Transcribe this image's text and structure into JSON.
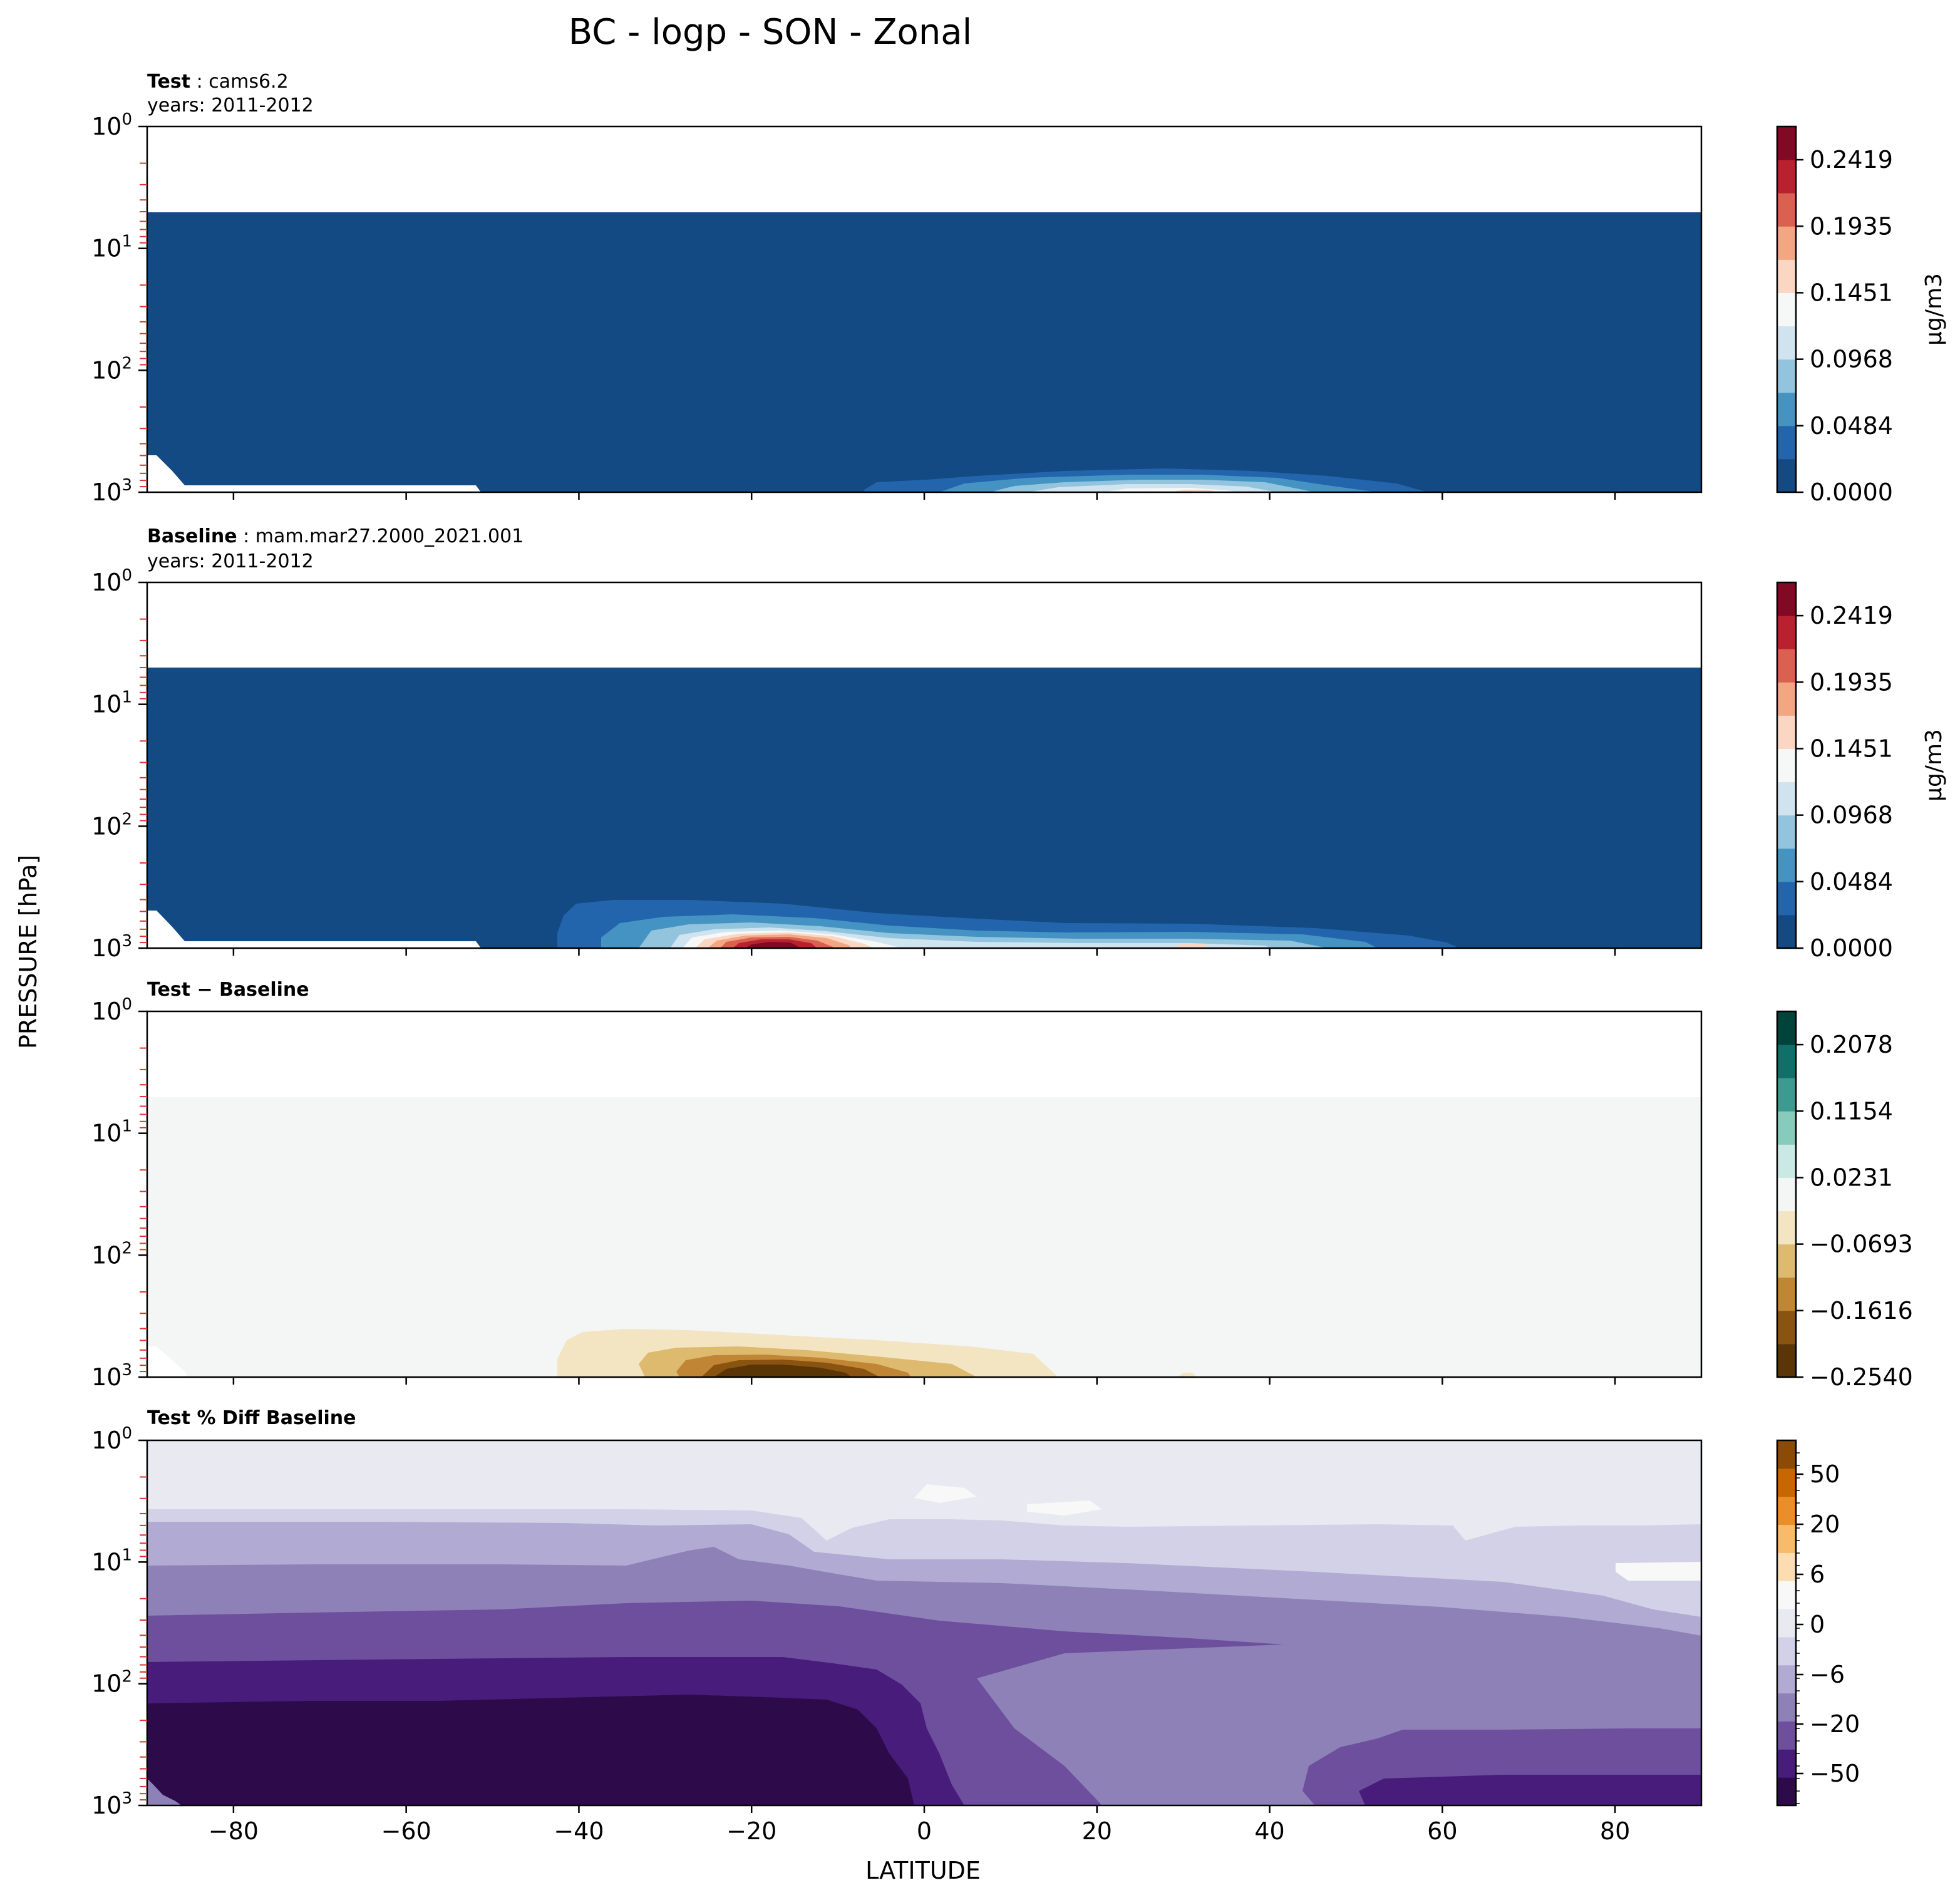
{
  "figure": {
    "title": "BC - logp - SON - Zonal",
    "ylabel": "PRESSURE [hPa]",
    "xlabel": "LATITUDE",
    "x_tick_labels": [
      "−80",
      "−60",
      "−40",
      "−20",
      "0",
      "20",
      "40",
      "60",
      "80"
    ]
  },
  "panels": [
    {
      "title_bold": "Test",
      "title_rest": " : cams6.2",
      "subtitle": "years: 2011-2012"
    },
    {
      "title_bold": "Baseline",
      "title_rest": " : mam.mar27.2000_2021.001",
      "subtitle": "years: 2011-2012"
    },
    {
      "title_bold": "Test − Baseline",
      "title_rest": "",
      "subtitle": ""
    },
    {
      "title_bold": "Test % Diff Baseline",
      "title_rest": "",
      "subtitle": ""
    }
  ],
  "colorbars": [
    {
      "label": "μg/m3",
      "ticks": [
        "0.0000",
        "0.0484",
        "0.0968",
        "0.1451",
        "0.1935",
        "0.2419"
      ]
    },
    {
      "label": "μg/m3",
      "ticks": [
        "0.0000",
        "0.0484",
        "0.0968",
        "0.1451",
        "0.1935",
        "0.2419"
      ]
    },
    {
      "label": "",
      "ticks": [
        "−0.2540",
        "−0.1616",
        "−0.0693",
        "0.0231",
        "0.1154",
        "0.2078"
      ]
    },
    {
      "label": "",
      "ticks": [
        "−50",
        "−20",
        "−6",
        "0",
        "6",
        "20",
        "50"
      ]
    }
  ],
  "chart_data": [
    {
      "type": "heatmap",
      "name": "Test",
      "variable": "BC",
      "units": "μg/m3",
      "x_axis": "LATITUDE",
      "xlim": [
        -90,
        90
      ],
      "xticks": [
        -80,
        -60,
        -40,
        -20,
        0,
        20,
        40,
        60,
        80
      ],
      "y_axis": "PRESSURE [hPa]",
      "y_scale": "log",
      "ylim": [
        1000,
        1
      ],
      "y_tick_labels": [
        "10^0",
        "10^1",
        "10^2",
        "10^3"
      ],
      "colormap": "RdBu_r",
      "levels": [
        0.0,
        0.0242,
        0.0484,
        0.0726,
        0.0968,
        0.121,
        0.1451,
        0.1693,
        0.1935,
        0.2177,
        0.2419,
        0.2661
      ],
      "features": [
        {
          "description": "background",
          "value": 0.0,
          "lat_range": [
            -90,
            90
          ],
          "pressure_range": [
            1000,
            5
          ]
        },
        {
          "description": "near-surface maximum",
          "value": 0.15,
          "lat_range": [
            5,
            50
          ],
          "pressure_range": [
            1000,
            600
          ]
        }
      ]
    },
    {
      "type": "heatmap",
      "name": "Baseline",
      "variable": "BC",
      "units": "μg/m3",
      "x_axis": "LATITUDE",
      "xlim": [
        -90,
        90
      ],
      "xticks": [
        -80,
        -60,
        -40,
        -20,
        0,
        20,
        40,
        60,
        80
      ],
      "y_axis": "PRESSURE [hPa]",
      "y_scale": "log",
      "ylim": [
        1000,
        1
      ],
      "y_tick_labels": [
        "10^0",
        "10^1",
        "10^2",
        "10^3"
      ],
      "colormap": "RdBu_r",
      "levels": [
        0.0,
        0.0242,
        0.0484,
        0.0726,
        0.0968,
        0.121,
        0.1451,
        0.1693,
        0.1935,
        0.2177,
        0.2419,
        0.2661
      ],
      "features": [
        {
          "description": "background",
          "value": 0.0,
          "lat_range": [
            -90,
            90
          ],
          "pressure_range": [
            1000,
            5
          ]
        },
        {
          "description": "southern tropical maximum",
          "value": 0.26,
          "lat_range": [
            -28,
            -8
          ],
          "pressure_range": [
            1000,
            700
          ]
        },
        {
          "description": "northern low-level band",
          "value": 0.12,
          "lat_range": [
            5,
            50
          ],
          "pressure_range": [
            1000,
            700
          ]
        }
      ]
    },
    {
      "type": "heatmap",
      "name": "Test − Baseline",
      "variable": "BC",
      "units": "μg/m3",
      "x_axis": "LATITUDE",
      "xlim": [
        -90,
        90
      ],
      "xticks": [
        -80,
        -60,
        -40,
        -20,
        0,
        20,
        40,
        60,
        80
      ],
      "y_axis": "PRESSURE [hPa]",
      "y_scale": "log",
      "ylim": [
        1000,
        1
      ],
      "y_tick_labels": [
        "10^0",
        "10^1",
        "10^2",
        "10^3"
      ],
      "colormap": "BrBG",
      "levels": [
        -0.254,
        -0.2078,
        -0.1616,
        -0.1154,
        -0.0693,
        -0.0231,
        0.0231,
        0.0693,
        0.1154,
        0.1616,
        0.2078,
        0.254
      ],
      "features": [
        {
          "description": "near-zero background",
          "value": 0.0,
          "lat_range": [
            -90,
            90
          ],
          "pressure_range": [
            1000,
            5
          ]
        },
        {
          "description": "southern tropical minimum",
          "value": -0.24,
          "lat_range": [
            -28,
            -8
          ],
          "pressure_range": [
            1000,
            700
          ]
        }
      ]
    },
    {
      "type": "heatmap",
      "name": "Test % Diff Baseline",
      "variable": "BC",
      "units": "%",
      "x_axis": "LATITUDE",
      "xlim": [
        -90,
        90
      ],
      "xticks": [
        -80,
        -60,
        -40,
        -20,
        0,
        20,
        40,
        60,
        80
      ],
      "y_axis": "PRESSURE [hPa]",
      "y_scale": "log",
      "ylim": [
        1000,
        1
      ],
      "y_tick_labels": [
        "10^0",
        "10^1",
        "10^2",
        "10^3"
      ],
      "colormap": "PuOr_r",
      "colorbar_ticks": [
        -50,
        -20,
        -6,
        0,
        6,
        20,
        50
      ],
      "features": [
        {
          "description": "upper levels near zero",
          "value": -2,
          "lat_range": [
            -90,
            90
          ],
          "pressure_range": [
            3,
            1
          ]
        },
        {
          "description": "mid levels",
          "value": -15,
          "lat_range": [
            -90,
            90
          ],
          "pressure_range": [
            100,
            10
          ]
        },
        {
          "description": "southern lower-troposphere minimum",
          "value": -70,
          "lat_range": [
            -90,
            -5
          ],
          "pressure_range": [
            1000,
            150
          ]
        },
        {
          "description": "northern lower troposphere",
          "value": -30,
          "lat_range": [
            40,
            90
          ],
          "pressure_range": [
            1000,
            300
          ]
        }
      ]
    }
  ],
  "colors": {
    "rdbu_r": [
      "#134a84",
      "#2265ac",
      "#4493c3",
      "#93c4de",
      "#d0e4ef",
      "#f6f7f7",
      "#fbd6c2",
      "#f4a582",
      "#d86150",
      "#b8212f",
      "#7e0a24"
    ],
    "brbg": [
      "#5a3606",
      "#8a5410",
      "#c18635",
      "#deba6e",
      "#f3e5c1",
      "#f4f5f5",
      "#cae9e4",
      "#86ccbd",
      "#3c9b90",
      "#107069",
      "#00433b"
    ],
    "puor_r": [
      "#2d0b4a",
      "#481c7a",
      "#6d4f9d",
      "#8d81b7",
      "#b1aad2",
      "#d3d1e7",
      "#e9e9f1",
      "#f8f8f8",
      "#fcdcb1",
      "#f9ba6a",
      "#e98e2a",
      "#c76704",
      "#8d4a05"
    ]
  }
}
